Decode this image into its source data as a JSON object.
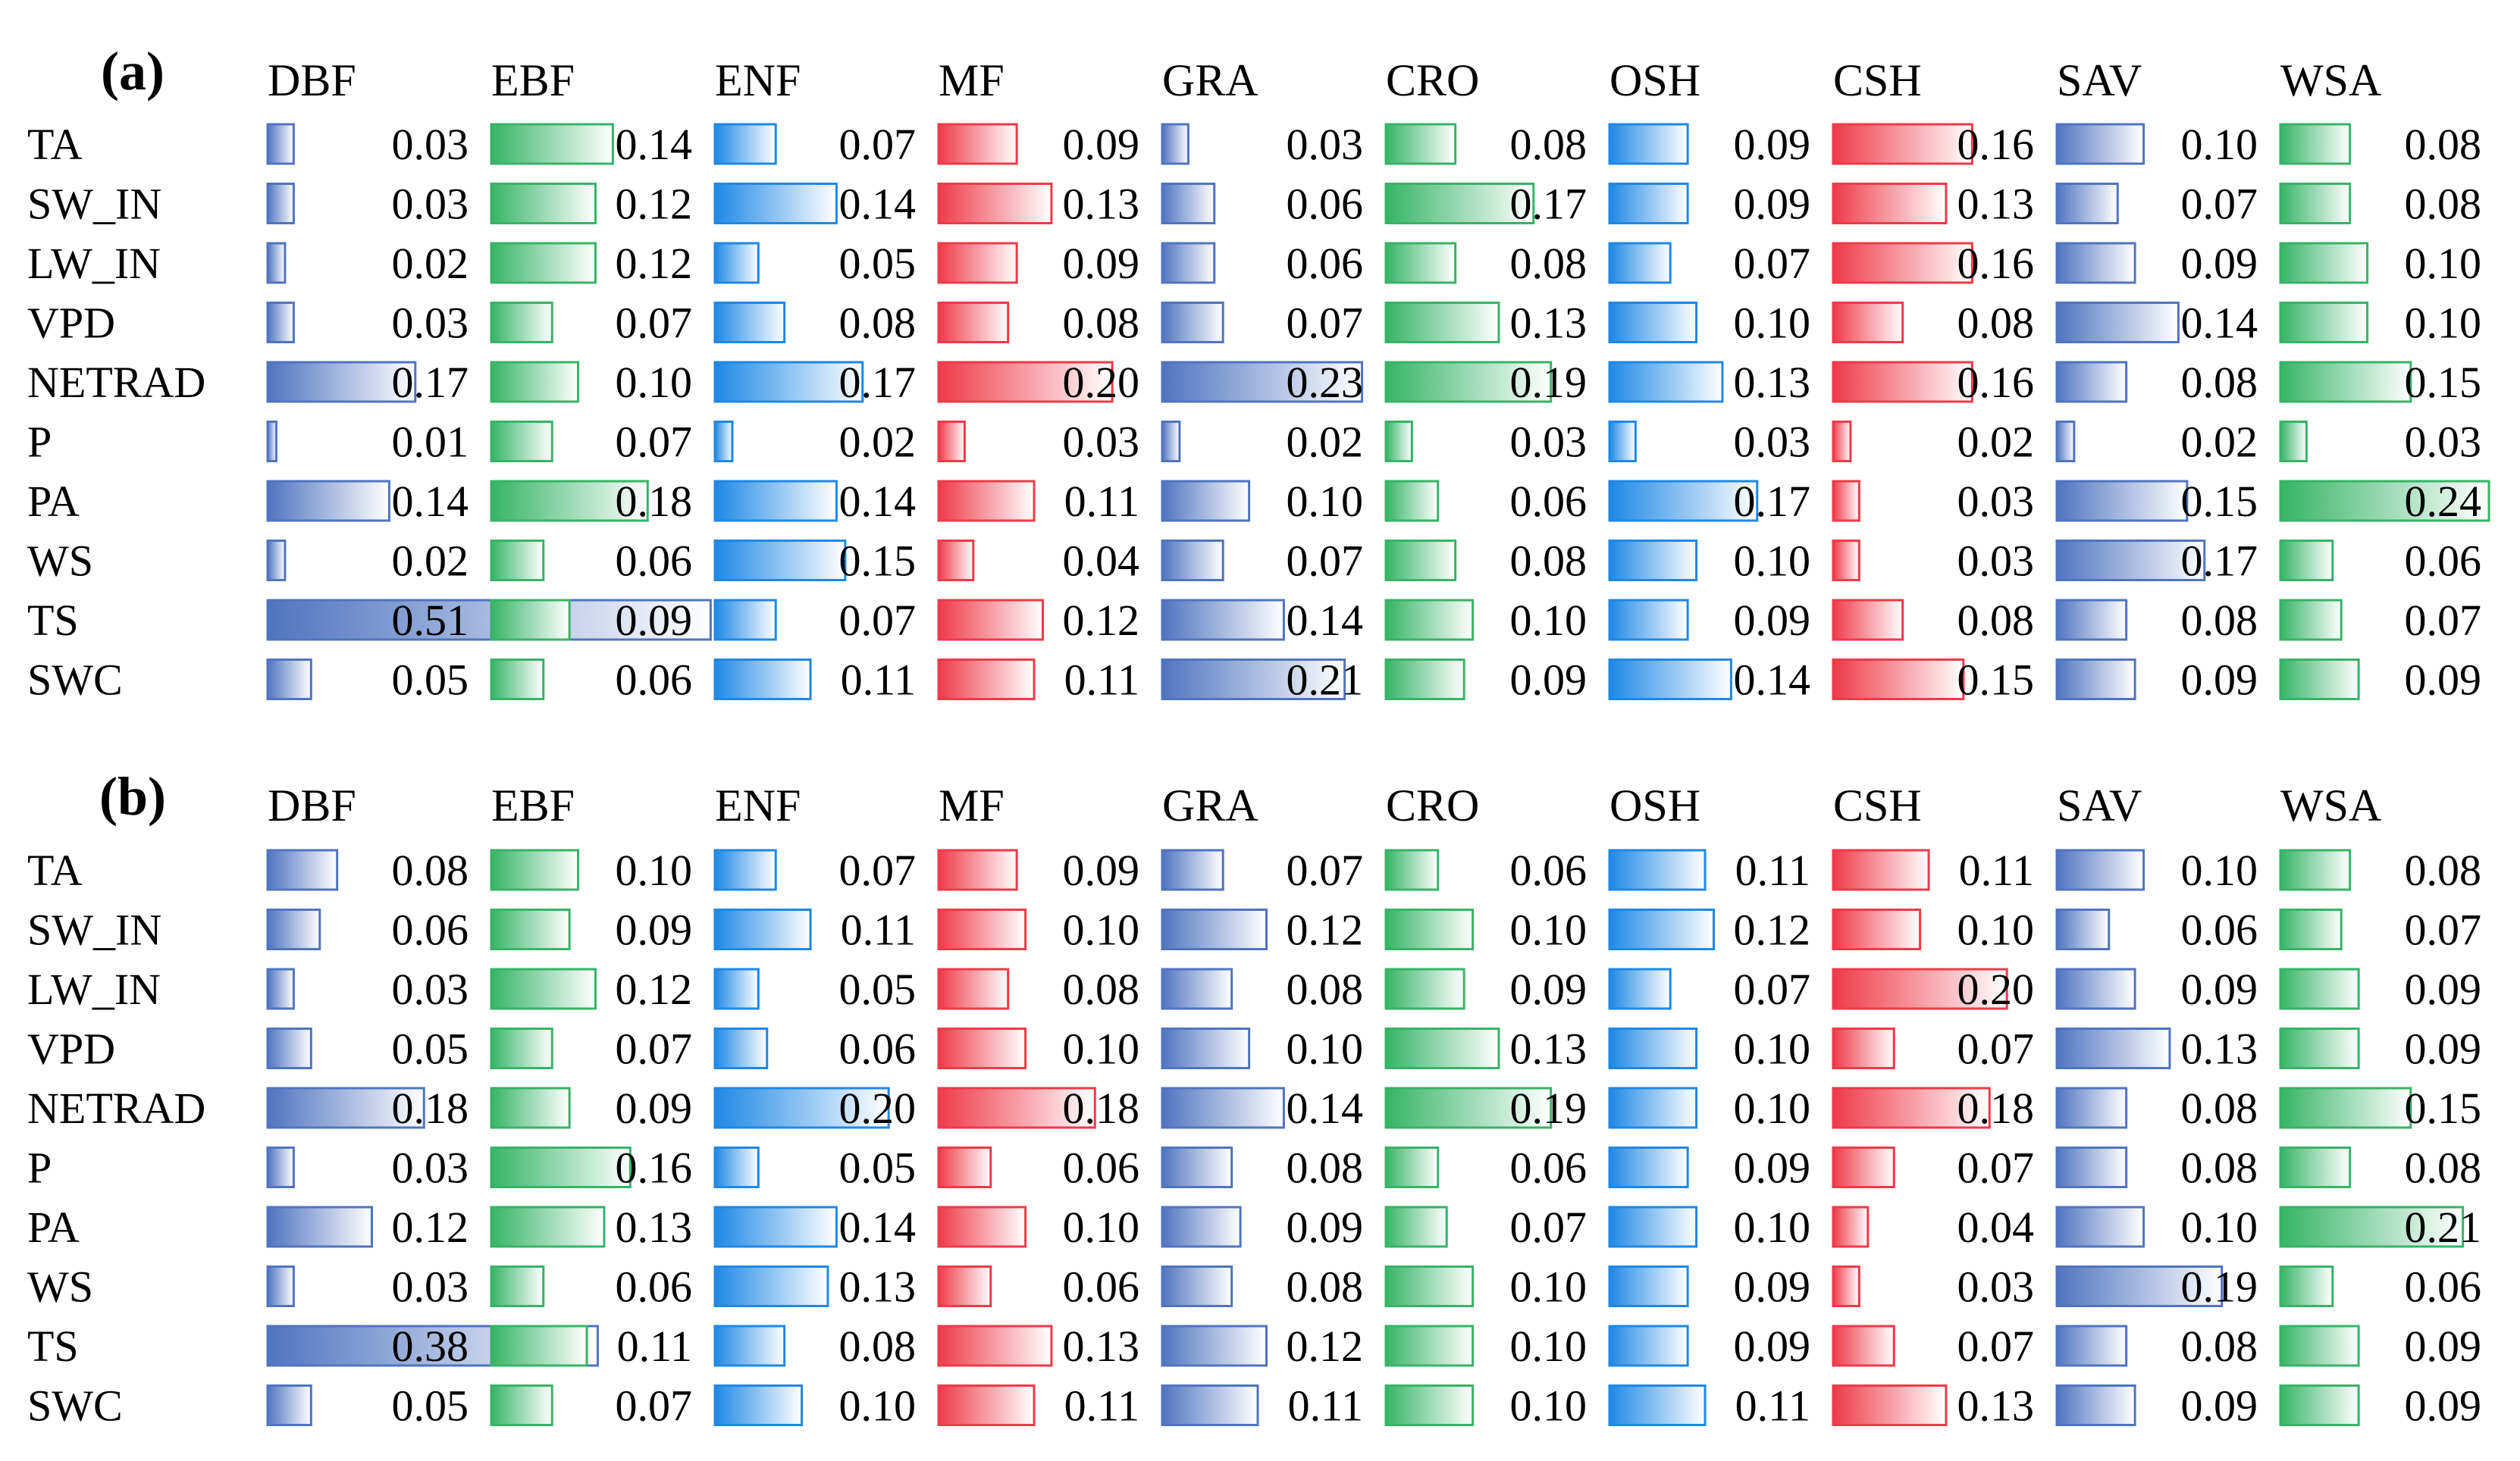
{
  "chart_data": [
    {
      "type": "table",
      "panel_label": "(a)",
      "columns": [
        "DBF",
        "EBF",
        "ENF",
        "MF",
        "GRA",
        "CRO",
        "OSH",
        "CSH",
        "SAV",
        "WSA"
      ],
      "rows": [
        "TA",
        "SW_IN",
        "LW_IN",
        "VPD",
        "NETRAD",
        "P",
        "PA",
        "WS",
        "TS",
        "SWC"
      ],
      "values": [
        [
          0.03,
          0.14,
          0.07,
          0.09,
          0.03,
          0.08,
          0.09,
          0.16,
          0.1,
          0.08
        ],
        [
          0.03,
          0.12,
          0.14,
          0.13,
          0.06,
          0.17,
          0.09,
          0.13,
          0.07,
          0.08
        ],
        [
          0.02,
          0.12,
          0.05,
          0.09,
          0.06,
          0.08,
          0.07,
          0.16,
          0.09,
          0.1
        ],
        [
          0.03,
          0.07,
          0.08,
          0.08,
          0.07,
          0.13,
          0.1,
          0.08,
          0.14,
          0.1
        ],
        [
          0.17,
          0.1,
          0.17,
          0.2,
          0.23,
          0.19,
          0.13,
          0.16,
          0.08,
          0.15
        ],
        [
          0.01,
          0.07,
          0.02,
          0.03,
          0.02,
          0.03,
          0.03,
          0.02,
          0.02,
          0.03
        ],
        [
          0.14,
          0.18,
          0.14,
          0.11,
          0.1,
          0.06,
          0.17,
          0.03,
          0.15,
          0.24
        ],
        [
          0.02,
          0.06,
          0.15,
          0.04,
          0.07,
          0.08,
          0.1,
          0.03,
          0.17,
          0.06
        ],
        [
          0.51,
          0.09,
          0.07,
          0.12,
          0.14,
          0.1,
          0.09,
          0.08,
          0.08,
          0.07
        ],
        [
          0.05,
          0.06,
          0.11,
          0.11,
          0.21,
          0.09,
          0.14,
          0.15,
          0.09,
          0.09
        ]
      ]
    },
    {
      "type": "table",
      "panel_label": "(b)",
      "columns": [
        "DBF",
        "EBF",
        "ENF",
        "MF",
        "GRA",
        "CRO",
        "OSH",
        "CSH",
        "SAV",
        "WSA"
      ],
      "rows": [
        "TA",
        "SW_IN",
        "LW_IN",
        "VPD",
        "NETRAD",
        "P",
        "PA",
        "WS",
        "TS",
        "SWC"
      ],
      "values": [
        [
          0.08,
          0.1,
          0.07,
          0.09,
          0.07,
          0.06,
          0.11,
          0.11,
          0.1,
          0.08
        ],
        [
          0.06,
          0.09,
          0.11,
          0.1,
          0.12,
          0.1,
          0.12,
          0.1,
          0.06,
          0.07
        ],
        [
          0.03,
          0.12,
          0.05,
          0.08,
          0.08,
          0.09,
          0.07,
          0.2,
          0.09,
          0.09
        ],
        [
          0.05,
          0.07,
          0.06,
          0.1,
          0.1,
          0.13,
          0.1,
          0.07,
          0.13,
          0.09
        ],
        [
          0.18,
          0.09,
          0.2,
          0.18,
          0.14,
          0.19,
          0.1,
          0.18,
          0.08,
          0.15
        ],
        [
          0.03,
          0.16,
          0.05,
          0.06,
          0.08,
          0.06,
          0.09,
          0.07,
          0.08,
          0.08
        ],
        [
          0.12,
          0.13,
          0.14,
          0.1,
          0.09,
          0.07,
          0.1,
          0.04,
          0.1,
          0.21
        ],
        [
          0.03,
          0.06,
          0.13,
          0.06,
          0.08,
          0.1,
          0.09,
          0.03,
          0.19,
          0.06
        ],
        [
          0.38,
          0.11,
          0.08,
          0.13,
          0.12,
          0.1,
          0.09,
          0.07,
          0.08,
          0.09
        ],
        [
          0.05,
          0.07,
          0.1,
          0.11,
          0.11,
          0.1,
          0.11,
          0.13,
          0.09,
          0.09
        ]
      ]
    }
  ],
  "palette": {
    "DBF": "#4f74c0",
    "EBF": "#36b466",
    "ENF": "#1e88e5",
    "MF": "#ee3a48",
    "GRA": "#4f74c0",
    "CRO": "#36b466",
    "OSH": "#1e88e5",
    "CSH": "#ee3a48",
    "SAV": "#4f74c0",
    "WSA": "#36b466"
  },
  "bar_scale_max": 0.24
}
